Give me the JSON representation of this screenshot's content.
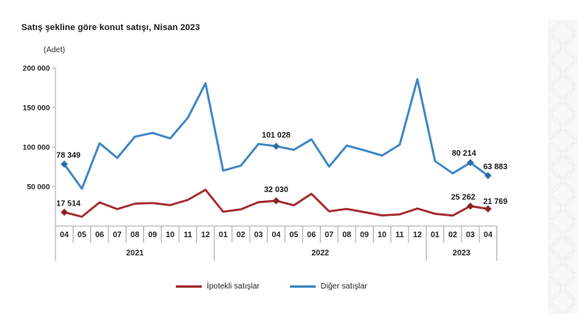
{
  "chart_data": {
    "type": "line",
    "title": "Satış şekline göre konut satışı, Nisan 2023",
    "unit_label": "(Adet)",
    "grid": false,
    "legend_position": "bottom",
    "ylim": [
      0,
      200000
    ],
    "yticks": [
      {
        "value": 50000,
        "label": "50 000"
      },
      {
        "value": 100000,
        "label": "100 000"
      },
      {
        "value": 150000,
        "label": "150 000"
      },
      {
        "value": 200000,
        "label": "200 000"
      }
    ],
    "x_months": [
      "04",
      "05",
      "06",
      "07",
      "08",
      "09",
      "10",
      "11",
      "12",
      "01",
      "02",
      "03",
      "04",
      "05",
      "06",
      "07",
      "08",
      "09",
      "10",
      "11",
      "12",
      "01",
      "02",
      "03",
      "04"
    ],
    "year_groups": [
      {
        "label": "2021",
        "from": 0,
        "to": 8
      },
      {
        "label": "2022",
        "from": 9,
        "to": 20
      },
      {
        "label": "2023",
        "from": 21,
        "to": 24
      }
    ],
    "series": [
      {
        "name": "İpotekli satışlar",
        "color": "#a62c30",
        "marker_color": "#8c2326",
        "values": [
          17514,
          11866,
          29963,
          21504,
          28373,
          29190,
          26510,
          33133,
          45919,
          18183,
          21147,
          30271,
          32030,
          26287,
          40809,
          18651,
          21659,
          17625,
          13508,
          14826,
          22166,
          15523,
          13350,
          25262,
          21769
        ],
        "marker_indices": [
          0,
          12,
          23,
          24
        ],
        "labels": [
          {
            "index": 0,
            "text": "17 514",
            "anchor": "start",
            "dx": -10,
            "dy": -8
          },
          {
            "index": 12,
            "text": "32 030",
            "anchor": "middle",
            "dx": 0,
            "dy": -11
          },
          {
            "index": 23,
            "text": "25 262",
            "anchor": "middle",
            "dx": -9,
            "dy": -8
          },
          {
            "index": 24,
            "text": "21 769",
            "anchor": "start",
            "dx": -6,
            "dy": -6
          }
        ]
      },
      {
        "name": "Diğer satışlar",
        "color": "#3e86c6",
        "marker_color": "#2e6da6",
        "values": [
          78349,
          47300,
          104768,
          86281,
          113027,
          117953,
          110891,
          137000,
          180584,
          70123,
          76440,
          103899,
          101028,
          96481,
          109700,
          75251,
          101832,
          95777,
          89152,
          102980,
          185797,
          82185,
          66681,
          80214,
          63883
        ],
        "marker_indices": [
          0,
          12,
          23,
          24
        ],
        "labels": [
          {
            "index": 0,
            "text": "78 349",
            "anchor": "start",
            "dx": -10,
            "dy": -8
          },
          {
            "index": 12,
            "text": "101 028",
            "anchor": "middle",
            "dx": 0,
            "dy": -11
          },
          {
            "index": 23,
            "text": "80 214",
            "anchor": "middle",
            "dx": -8,
            "dy": -9
          },
          {
            "index": 24,
            "text": "63 883",
            "anchor": "start",
            "dx": -6,
            "dy": -8
          }
        ]
      }
    ]
  },
  "style": {
    "axis_color": "#a9a9a9",
    "tick_text_color": "#262626",
    "label_text_color": "#1a1a1a",
    "decor_strip_color": "#f8f8f8",
    "decor_pattern_color": "#ececec"
  }
}
